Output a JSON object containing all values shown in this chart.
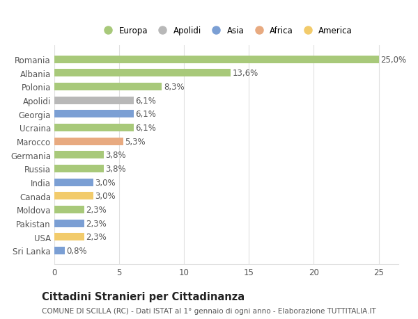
{
  "categories": [
    "Sri Lanka",
    "USA",
    "Pakistan",
    "Moldova",
    "Canada",
    "India",
    "Russia",
    "Germania",
    "Marocco",
    "Ucraina",
    "Georgia",
    "Apolidi",
    "Polonia",
    "Albania",
    "Romania"
  ],
  "values": [
    0.8,
    2.3,
    2.3,
    2.3,
    3.0,
    3.0,
    3.8,
    3.8,
    5.3,
    6.1,
    6.1,
    6.1,
    8.3,
    13.6,
    25.0
  ],
  "labels": [
    "0,8%",
    "2,3%",
    "2,3%",
    "2,3%",
    "3,0%",
    "3,0%",
    "3,8%",
    "3,8%",
    "5,3%",
    "6,1%",
    "6,1%",
    "6,1%",
    "8,3%",
    "13,6%",
    "25,0%"
  ],
  "colors": [
    "#7b9fd4",
    "#f2cb6b",
    "#7b9fd4",
    "#a8c97a",
    "#f2cb6b",
    "#7b9fd4",
    "#a8c97a",
    "#a8c97a",
    "#e8aa80",
    "#a8c97a",
    "#7b9fd4",
    "#b8b8b8",
    "#a8c97a",
    "#a8c97a",
    "#a8c97a"
  ],
  "legend_labels": [
    "Europa",
    "Apolidi",
    "Asia",
    "Africa",
    "America"
  ],
  "legend_colors": [
    "#a8c97a",
    "#b8b8b8",
    "#7b9fd4",
    "#e8aa80",
    "#f2cb6b"
  ],
  "title": "Cittadini Stranieri per Cittadinanza",
  "subtitle": "COMUNE DI SCILLA (RC) - Dati ISTAT al 1° gennaio di ogni anno - Elaborazione TUTTITALIA.IT",
  "xlim": [
    0,
    26.5
  ],
  "xticks": [
    0,
    5,
    10,
    15,
    20,
    25
  ],
  "bar_height": 0.55,
  "background_color": "#ffffff",
  "grid_color": "#e0e0e0",
  "text_color": "#555555",
  "label_fontsize": 8.5,
  "title_fontsize": 10.5,
  "subtitle_fontsize": 7.5
}
